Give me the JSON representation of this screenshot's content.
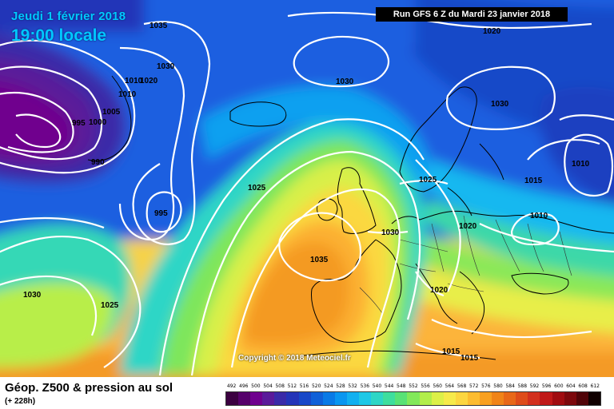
{
  "header": {
    "date": "Jeudi 1 février 2018",
    "time": "19:00 locale",
    "run": "Run GFS 6 Z du Mardi 23 janvier 2018"
  },
  "copyright": "Copyright © 2018 Meteociel.fr",
  "footer": {
    "title": "Géop. Z500 & pression au sol",
    "hour": "(+ 228h)"
  },
  "scale": {
    "labels": [
      "492",
      "496",
      "500",
      "504",
      "508",
      "512",
      "516",
      "520",
      "524",
      "528",
      "532",
      "536",
      "540",
      "544",
      "548",
      "552",
      "556",
      "560",
      "564",
      "568",
      "572",
      "576",
      "580",
      "584",
      "588",
      "592",
      "596",
      "600",
      "604",
      "608",
      "612"
    ],
    "colors": [
      "#3b0040",
      "#55006a",
      "#6f008e",
      "#5a1a9a",
      "#3a2aa8",
      "#2434b8",
      "#1848c8",
      "#1060d8",
      "#0a7ae6",
      "#0a96f0",
      "#12b0f0",
      "#1ec8e6",
      "#2ed6c6",
      "#3ede9e",
      "#58e276",
      "#82e85a",
      "#b2ee4a",
      "#dcf048",
      "#f6ea4a",
      "#fcd640",
      "#fcbc30",
      "#f8a020",
      "#f08418",
      "#e86818",
      "#de4c1a",
      "#d2301e",
      "#c01818",
      "#a00c10",
      "#7c080c",
      "#500408",
      "#100000"
    ]
  },
  "isobar_labels": [
    "1035",
    "1030",
    "1010",
    "1020",
    "1010",
    "1005",
    "1000",
    "995",
    "990",
    "1020",
    "1030",
    "1030",
    "1025",
    "995",
    "1035",
    "1030",
    "1025",
    "1020",
    "1020",
    "1010",
    "1015",
    "1010",
    "1030",
    "1025",
    "1015",
    "1015"
  ]
}
